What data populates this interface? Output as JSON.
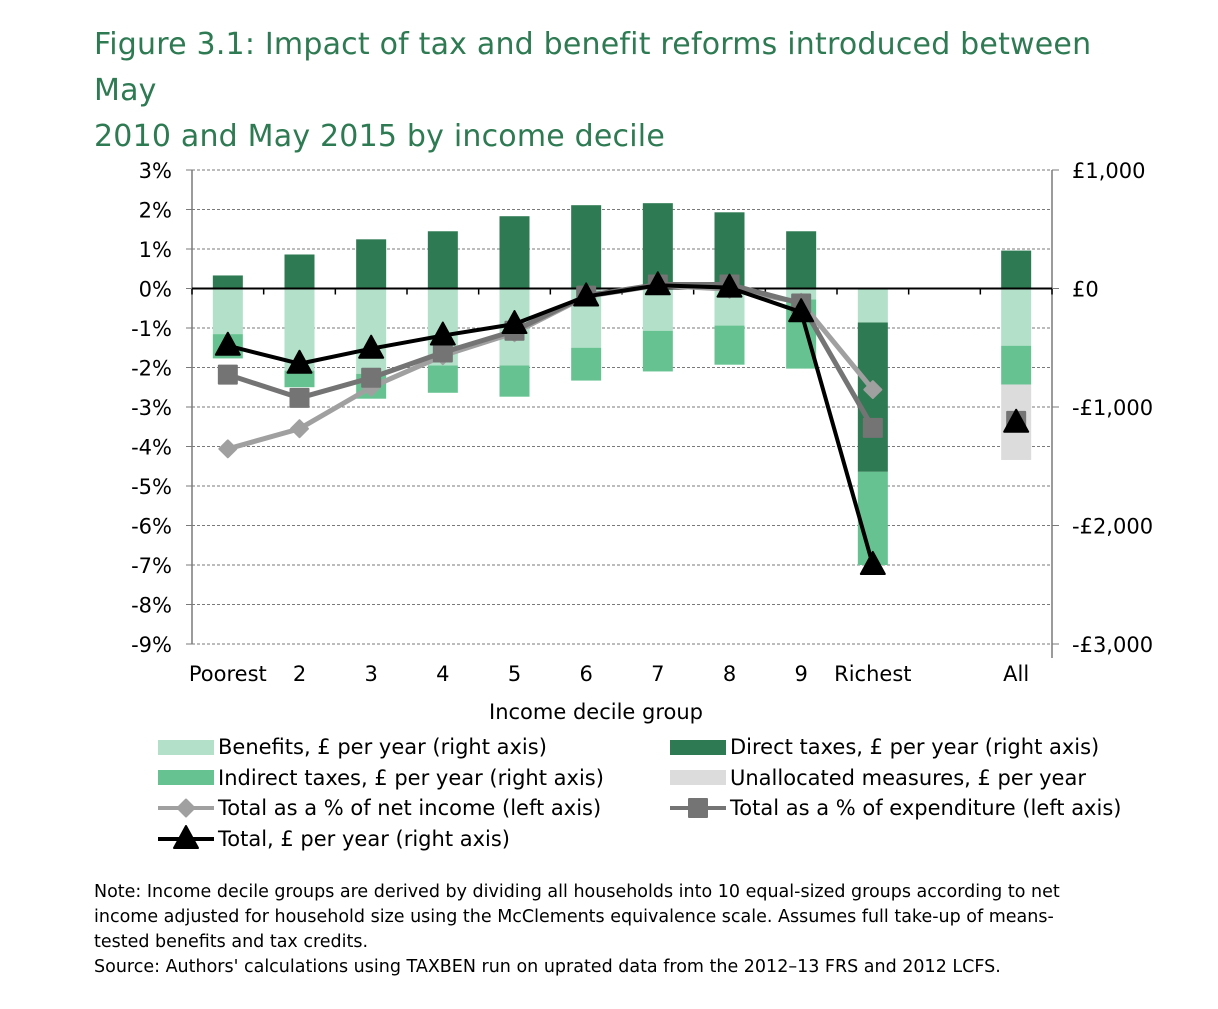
{
  "title": {
    "line1": "Figure 3.1: Impact of tax and benefit reforms introduced between May",
    "line2": "2010 and May 2015 by income decile"
  },
  "colors": {
    "title": "#2e7a52",
    "benefits": "#b2e0c8",
    "direct_taxes": "#2e7a52",
    "indirect_taxes": "#66c391",
    "unallocated": "#dcdcdc",
    "pct_net_income": "#a0a0a0",
    "pct_expenditure": "#747474",
    "total_gbp": "#000000"
  },
  "chart_data": {
    "type": "bar",
    "subtype": "stacked bar with line overlays, dual axis",
    "xlabel": "Income decile group",
    "categories": [
      "Poorest",
      "2",
      "3",
      "4",
      "5",
      "6",
      "7",
      "8",
      "9",
      "Richest",
      "All"
    ],
    "left_axis": {
      "label": "",
      "ylim": [
        -9,
        3
      ],
      "ticks": [
        "3%",
        "2%",
        "1%",
        "0%",
        "-1%",
        "-2%",
        "-3%",
        "-4%",
        "-5%",
        "-6%",
        "-7%",
        "-8%",
        "-9%"
      ]
    },
    "right_axis": {
      "label": "",
      "ylim": [
        -3000,
        1000
      ],
      "ticks": [
        "£1,000",
        "£0",
        "-£1,000",
        "-£2,000",
        "-£3,000"
      ]
    },
    "grid": true,
    "legend_position": "bottom",
    "bar_series": [
      {
        "name": "Benefits, £ per year (right axis)",
        "key": "benefits",
        "axis": "right",
        "values": [
          -385,
          -693,
          -720,
          -650,
          -650,
          -500,
          -357,
          -313,
          -93,
          -287,
          -483
        ]
      },
      {
        "name": "Direct taxes, £ per year (right axis)",
        "key": "direct_taxes",
        "axis": "right",
        "values": [
          110,
          287,
          415,
          483,
          610,
          703,
          720,
          643,
          483,
          -1260,
          320
        ]
      },
      {
        "name": "Indirect taxes, £ per year (right axis)",
        "key": "indirect_taxes",
        "axis": "right",
        "values": [
          -205,
          -140,
          -210,
          -230,
          -263,
          -277,
          -343,
          -330,
          -583,
          -787,
          -327
        ]
      },
      {
        "name": "Unallocated measures, £ per year",
        "key": "unallocated",
        "axis": "right",
        "values": [
          0,
          0,
          0,
          0,
          0,
          0,
          0,
          0,
          0,
          0,
          -637
        ]
      }
    ],
    "line_series": [
      {
        "name": "Total as a % of net income (left axis)",
        "key": "pct_net_income",
        "axis": "left",
        "marker": "diamond",
        "values": [
          -4.06,
          -3.55,
          -2.5,
          -1.7,
          -1.12,
          -0.2,
          0.08,
          -0.02,
          -0.35,
          -2.56,
          -3.3
        ]
      },
      {
        "name": "Total as a % of expenditure (left axis)",
        "key": "pct_expenditure",
        "axis": "left",
        "marker": "square",
        "values": [
          -2.18,
          -2.77,
          -2.26,
          -1.62,
          -1.07,
          -0.18,
          0.1,
          0.1,
          -0.38,
          -3.53,
          -3.35
        ]
      },
      {
        "name": "Total, £ per year (right axis)",
        "key": "total_gbp",
        "axis": "right",
        "marker": "triangle",
        "values": [
          -483,
          -635,
          -508,
          -397,
          -300,
          -67,
          27,
          7,
          -200,
          -2333,
          -1133
        ]
      }
    ],
    "line_connects": "deciles only (All shown as standalone markers)"
  },
  "legend": {
    "items": [
      {
        "label": "Benefits, £ per year (right axis)",
        "key": "benefits",
        "kind": "bar"
      },
      {
        "label": "Direct taxes, £ per year (right axis)",
        "key": "direct_taxes",
        "kind": "bar"
      },
      {
        "label": "Indirect taxes, £ per year (right axis)",
        "key": "indirect_taxes",
        "kind": "bar"
      },
      {
        "label": "Unallocated measures, £ per year",
        "key": "unallocated",
        "kind": "bar"
      },
      {
        "label": "Total as a % of net income (left axis)",
        "key": "pct_net_income",
        "kind": "diamond"
      },
      {
        "label": "Total as a % of expenditure (left axis)",
        "key": "pct_expenditure",
        "kind": "square"
      },
      {
        "label": "Total, £ per year (right axis)",
        "key": "total_gbp",
        "kind": "triangle"
      }
    ]
  },
  "note": {
    "line1": "Note: Income decile groups are derived by dividing all households into 10 equal-sized groups according to net",
    "line2": "income adjusted for household size using the McClements equivalence scale. Assumes full take-up of means-",
    "line3": "tested benefits and tax credits.",
    "line4": "Source: Authors' calculations using TAXBEN run on uprated data from the 2012–13 FRS and 2012 LCFS."
  }
}
